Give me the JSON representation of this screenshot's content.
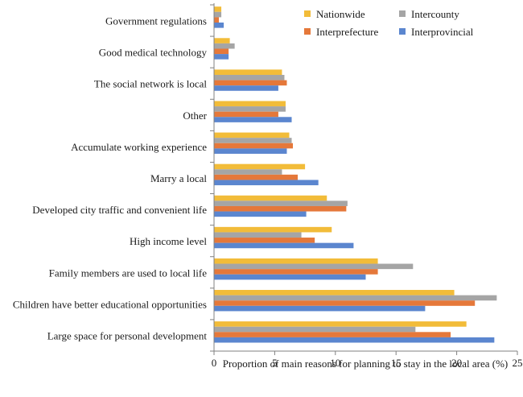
{
  "chart_data": {
    "type": "bar",
    "orientation": "horizontal",
    "title": "",
    "xlabel": "Proportion of main reasons for planning to stay in the local area (%)",
    "ylabel": "",
    "xlim": [
      0,
      25
    ],
    "xticks": [
      "0",
      "5",
      "10",
      "15",
      "20",
      "25"
    ],
    "grid": false,
    "legend_position": "top-right",
    "categories": [
      "Large space for personal development",
      "Children have better educational opportunities",
      "Family members are used to local life",
      "High income level",
      "Developed city traffic and convenient life",
      "Marry a local",
      "Accumulate working experience",
      "Other",
      "The social network is local",
      "Good medical technology",
      "Government regulations"
    ],
    "series": [
      {
        "name": "Nationwide",
        "color": "#F2BC39",
        "values": [
          20.8,
          19.8,
          13.5,
          9.7,
          9.3,
          7.5,
          6.2,
          5.9,
          5.6,
          1.3,
          0.6
        ]
      },
      {
        "name": "Intercounty",
        "color": "#A5A5A5",
        "values": [
          16.6,
          23.3,
          16.4,
          7.2,
          11.0,
          5.6,
          6.4,
          5.9,
          5.8,
          1.7,
          0.6
        ]
      },
      {
        "name": "Interprefecture",
        "color": "#E5783A",
        "values": [
          19.5,
          21.5,
          13.5,
          8.3,
          10.9,
          6.9,
          6.5,
          5.3,
          6.0,
          1.2,
          0.4
        ]
      },
      {
        "name": "Interprovincial",
        "color": "#5B86CF",
        "values": [
          23.1,
          17.4,
          12.5,
          11.5,
          7.6,
          8.6,
          6.0,
          6.4,
          5.3,
          1.2,
          0.8
        ]
      }
    ]
  }
}
